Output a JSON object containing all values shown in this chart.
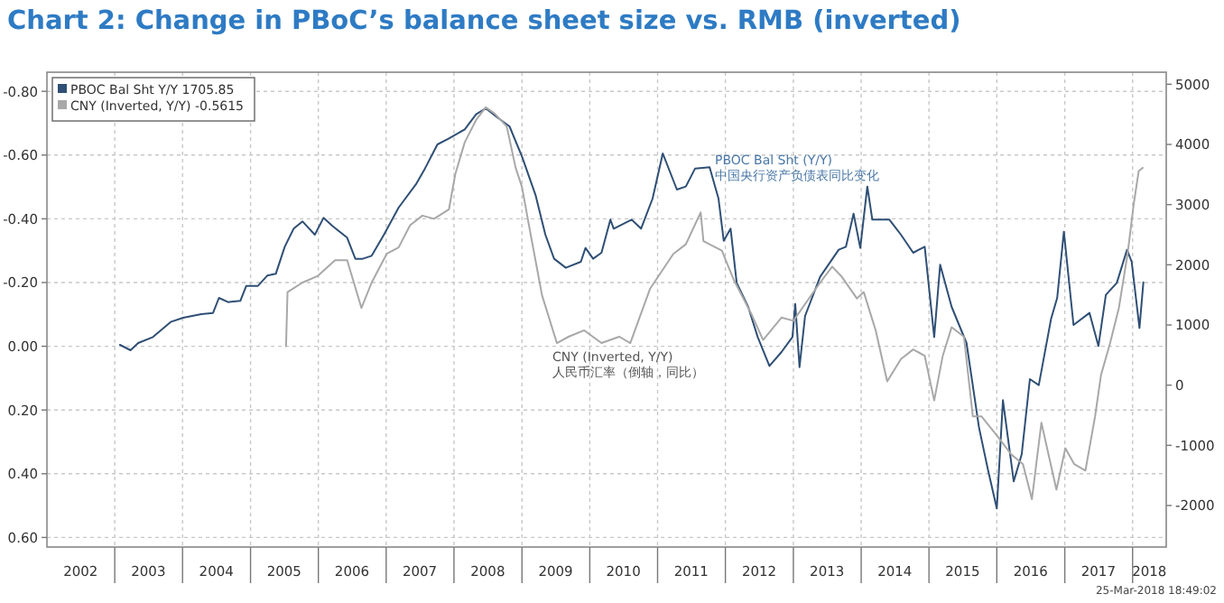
{
  "chart_data": {
    "type": "line",
    "title": "Chart 2: Change in PBoC’s balance sheet size vs. RMB (inverted)",
    "xlim": [
      "2002-01-01",
      "2018-07-01"
    ],
    "xticks": [
      {
        "value": "2002-07-01",
        "label": "2002"
      },
      {
        "value": "2003-01-01",
        "label": null
      },
      {
        "value": "2003-07-01",
        "label": "2003"
      },
      {
        "value": "2004-01-01",
        "label": null
      },
      {
        "value": "2004-07-01",
        "label": "2004"
      },
      {
        "value": "2005-01-01",
        "label": null
      },
      {
        "value": "2005-07-01",
        "label": "2005"
      },
      {
        "value": "2006-01-01",
        "label": null
      },
      {
        "value": "2006-07-01",
        "label": "2006"
      },
      {
        "value": "2007-01-01",
        "label": null
      },
      {
        "value": "2007-07-01",
        "label": "2007"
      },
      {
        "value": "2008-01-01",
        "label": null
      },
      {
        "value": "2008-07-01",
        "label": "2008"
      },
      {
        "value": "2009-01-01",
        "label": null
      },
      {
        "value": "2009-07-01",
        "label": "2009"
      },
      {
        "value": "2010-01-01",
        "label": null
      },
      {
        "value": "2010-07-01",
        "label": "2010"
      },
      {
        "value": "2011-01-01",
        "label": null
      },
      {
        "value": "2011-07-01",
        "label": "2011"
      },
      {
        "value": "2012-01-01",
        "label": null
      },
      {
        "value": "2012-07-01",
        "label": "2012"
      },
      {
        "value": "2013-01-01",
        "label": null
      },
      {
        "value": "2013-07-01",
        "label": "2013"
      },
      {
        "value": "2014-01-01",
        "label": null
      },
      {
        "value": "2014-07-01",
        "label": "2014"
      },
      {
        "value": "2015-01-01",
        "label": null
      },
      {
        "value": "2015-07-01",
        "label": "2015"
      },
      {
        "value": "2016-01-01",
        "label": null
      },
      {
        "value": "2016-07-01",
        "label": "2016"
      },
      {
        "value": "2017-01-01",
        "label": null
      },
      {
        "value": "2017-07-01",
        "label": "2017"
      },
      {
        "value": "2018-01-01",
        "label": null
      },
      {
        "value": "2018-04-01",
        "label": "2018"
      }
    ],
    "ylim": [
      0.63,
      -0.86
    ],
    "yticks": [
      {
        "value": -0.8,
        "label": "-0.80"
      },
      {
        "value": -0.6,
        "label": "-0.60"
      },
      {
        "value": -0.4,
        "label": "-0.40"
      },
      {
        "value": -0.2,
        "label": "-0.20"
      },
      {
        "value": 0,
        "label": "0.00"
      },
      {
        "value": 0.2,
        "label": "0.20"
      },
      {
        "value": 0.4,
        "label": "0.40"
      },
      {
        "value": 0.6,
        "label": "0.60"
      }
    ],
    "y2lim": [
      -2690,
      5200
    ],
    "y2ticks": [
      5000,
      4000,
      3000,
      2000,
      1000,
      0,
      -1000,
      -2000
    ],
    "grid": true,
    "legend": "top left",
    "annotations": [
      "PBOC Bal Sht (Y/Y)\n中国央行资产负债表同比变化",
      "CNY (Inverted, Y/Y)\n人民币汇率（倒轴，同比）",
      "25-Mar-2018 18:49:02"
    ],
    "series": [
      {
        "name": "PBOC Bal Sht Y/Y 1705.85",
        "color": "#2f4f75",
        "axis": "y2",
        "x": [
          "2003-01-29",
          "2003-03-27",
          "2003-05-07",
          "2003-07-26",
          "2003-10-29",
          "2004-01-04",
          "2004-04-11",
          "2004-06-13",
          "2004-07-15",
          "2004-09-02",
          "2004-11-07",
          "2004-12-09",
          "2005-02-10",
          "2005-04-01",
          "2005-05-17",
          "2005-07-04",
          "2005-08-21",
          "2005-10-08",
          "2005-12-13",
          "2006-01-29",
          "2006-03-16",
          "2006-06-05",
          "2006-07-19",
          "2006-08-28",
          "2006-10-15",
          "2006-12-20",
          "2007-03-09",
          "2007-06-13",
          "2007-07-29",
          "2007-10-04",
          "2007-12-05",
          "2008-02-28",
          "2008-04-29",
          "2008-06-20",
          "2008-08-21",
          "2008-10-26",
          "2009-01-01",
          "2009-03-16",
          "2009-05-07",
          "2009-06-23",
          "2009-08-25",
          "2009-11-14",
          "2009-12-09",
          "2010-01-19",
          "2010-03-05",
          "2010-04-22",
          "2010-05-10",
          "2010-08-14",
          "2010-10-04",
          "2010-12-05",
          "2011-01-29",
          "2011-04-15",
          "2011-06-02",
          "2011-07-22",
          "2011-10-08",
          "2011-11-25",
          "2011-12-23",
          "2012-01-29",
          "2012-03-02",
          "2012-05-03",
          "2012-06-23",
          "2012-08-25",
          "2012-10-29",
          "2012-12-27",
          "2013-01-11",
          "2013-02-03",
          "2013-03-05",
          "2013-05-25",
          "2013-09-02",
          "2013-10-11",
          "2013-11-21",
          "2013-12-27",
          "2014-02-03",
          "2014-03-02",
          "2014-06-02",
          "2014-08-03",
          "2014-10-08",
          "2014-12-09",
          "2015-01-29",
          "2015-03-02",
          "2015-05-03",
          "2015-07-22",
          "2015-09-27",
          "2015-11-14",
          "2016-01-01",
          "2016-02-03",
          "2016-04-01",
          "2016-05-14",
          "2016-06-27",
          "2016-08-14",
          "2016-10-19",
          "2016-11-21",
          "2016-12-27",
          "2017-02-17",
          "2017-05-14",
          "2017-07-01",
          "2017-08-10",
          "2017-10-08",
          "2017-12-02",
          "2017-12-27",
          "2018-02-07",
          "2018-02-28"
        ],
        "values": [
          670,
          580,
          700,
          800,
          1050,
          1120,
          1180,
          1200,
          1450,
          1380,
          1400,
          1650,
          1650,
          1820,
          1850,
          2300,
          2600,
          2720,
          2500,
          2780,
          2650,
          2450,
          2100,
          2100,
          2150,
          2500,
          2950,
          3350,
          3600,
          4000,
          4100,
          4250,
          4500,
          4600,
          4450,
          4300,
          3800,
          3150,
          2500,
          2100,
          1950,
          2050,
          2280,
          2100,
          2200,
          2750,
          2600,
          2750,
          2600,
          3100,
          3850,
          3250,
          3300,
          3600,
          3620,
          3100,
          2400,
          2600,
          1700,
          1300,
          800,
          320,
          550,
          800,
          1350,
          300,
          1150,
          1800,
          2250,
          2300,
          2850,
          2280,
          3300,
          2750,
          2750,
          2500,
          2200,
          2300,
          800,
          2000,
          1300,
          700,
          -700,
          -1400,
          -2050,
          -250,
          -1600,
          -1150,
          100,
          0,
          1100,
          1450,
          2550,
          1000,
          1200,
          650,
          1500,
          1700,
          2250,
          2050,
          950,
          1710
        ]
      },
      {
        "name": "CNY (Inverted, Y/Y) -0.5615",
        "color": "#a8a8a8",
        "x": [
          "2005-07-11",
          "2005-07-19",
          "2005-10-08",
          "2005-12-27",
          "2006-04-01",
          "2006-06-05",
          "2006-08-21",
          "2006-10-15",
          "2007-01-04",
          "2007-03-09",
          "2007-05-10",
          "2007-07-15",
          "2007-09-16",
          "2007-12-05",
          "2008-01-08",
          "2008-02-28",
          "2008-04-29",
          "2008-06-20",
          "2008-08-07",
          "2008-10-11",
          "2008-11-28",
          "2009-01-01",
          "2009-02-17",
          "2009-04-19",
          "2009-07-08",
          "2009-09-09",
          "2009-12-02",
          "2010-03-05",
          "2010-06-09",
          "2010-08-07",
          "2010-11-21",
          "2011-03-27",
          "2011-06-02",
          "2011-08-21",
          "2011-09-05",
          "2011-12-13",
          "2012-02-14",
          "2012-05-21",
          "2012-07-22",
          "2012-10-29",
          "2013-01-01",
          "2013-05-25",
          "2013-07-29",
          "2013-09-16",
          "2013-12-09",
          "2014-01-15",
          "2014-03-20",
          "2014-05-21",
          "2014-08-03",
          "2014-10-08",
          "2014-12-09",
          "2015-01-29",
          "2015-03-16",
          "2015-05-03",
          "2015-07-08",
          "2015-08-25",
          "2015-10-11",
          "2016-01-01",
          "2016-03-20",
          "2016-05-21",
          "2016-07-08",
          "2016-08-28",
          "2016-11-17",
          "2017-01-04",
          "2017-02-21",
          "2017-04-22",
          "2017-06-13",
          "2017-07-15",
          "2017-09-02",
          "2017-10-19",
          "2017-12-05",
          "2018-01-08",
          "2018-02-03",
          "2018-02-24"
        ],
        "values": [
          0,
          -0.17,
          -0.2,
          -0.22,
          -0.27,
          -0.27,
          -0.12,
          -0.2,
          -0.29,
          -0.31,
          -0.38,
          -0.41,
          -0.4,
          -0.43,
          -0.54,
          -0.64,
          -0.71,
          -0.75,
          -0.73,
          -0.69,
          -0.56,
          -0.5,
          -0.35,
          -0.16,
          -0.01,
          -0.03,
          -0.05,
          -0.01,
          -0.03,
          -0.01,
          -0.18,
          -0.29,
          -0.32,
          -0.42,
          -0.33,
          -0.3,
          -0.21,
          -0.1,
          -0.02,
          -0.09,
          -0.08,
          -0.2,
          -0.25,
          -0.22,
          -0.15,
          -0.17,
          -0.05,
          0.11,
          0.04,
          0.01,
          0.03,
          0.17,
          0.03,
          -0.06,
          -0.03,
          0.22,
          0.22,
          0.28,
          0.34,
          0.37,
          0.48,
          0.24,
          0.45,
          0.32,
          0.37,
          0.39,
          0.22,
          0.09,
          -0.01,
          -0.12,
          -0.29,
          -0.45,
          -0.55,
          -0.56
        ]
      }
    ]
  }
}
